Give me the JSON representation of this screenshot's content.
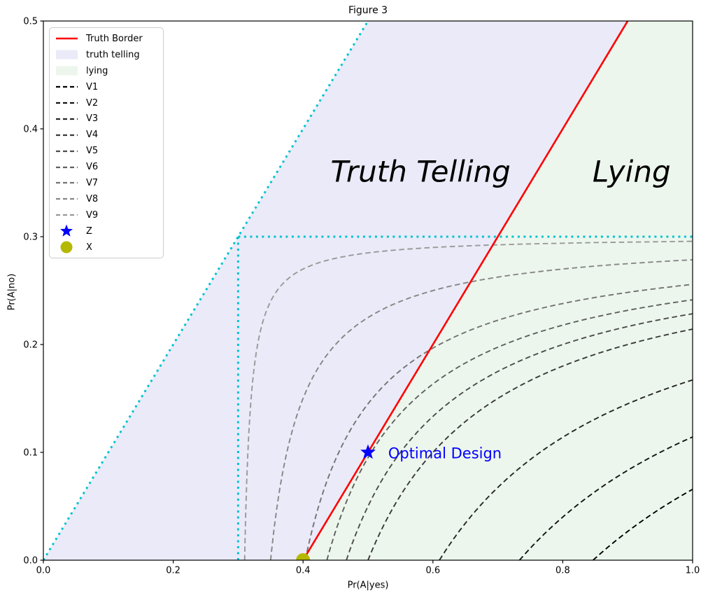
{
  "figure": {
    "title": "Figure 3"
  },
  "chart_data": {
    "type": "line",
    "title": "Figure 3",
    "xlabel": "Pr(A|yes)",
    "ylabel": "Pr(A|no)",
    "xlim": [
      0,
      1.0
    ],
    "ylim": [
      0,
      0.5
    ],
    "grid": false,
    "legend_position": "upper left",
    "xticks": {
      "values": [
        0,
        0.2,
        0.4,
        0.6,
        0.8,
        1.0
      ],
      "labels": [
        "0.0",
        "0.2",
        "0.4",
        "0.6",
        "0.8",
        "1.0"
      ]
    },
    "yticks": {
      "values": [
        0,
        0.1,
        0.2,
        0.3,
        0.4,
        0.5
      ],
      "labels": [
        "0.0",
        "0.1",
        "0.2",
        "0.3",
        "0.4",
        "0.5"
      ]
    },
    "regions": [
      {
        "name": "truth telling",
        "color": "#EAEAF8",
        "polygon": [
          [
            0,
            0
          ],
          [
            0.4,
            0
          ],
          [
            0.9,
            0.5
          ],
          [
            0.5,
            0.5
          ]
        ]
      },
      {
        "name": "lying",
        "color": "#EDF6ED",
        "polygon": [
          [
            0.4,
            0
          ],
          [
            1.0,
            0
          ],
          [
            1.0,
            0.5
          ],
          [
            0.9,
            0.5
          ]
        ]
      }
    ],
    "truth_border": {
      "label": "Truth Border",
      "color": "#FF0000",
      "from": [
        0.4,
        0
      ],
      "to": [
        0.9,
        0.5
      ]
    },
    "guide_lines": {
      "color": "#00C3CE",
      "style": "dotted",
      "segments": [
        {
          "name": "diagonal y=x",
          "from": [
            0,
            0
          ],
          "to": [
            0.5,
            0.5
          ]
        },
        {
          "name": "vertical x=0.3",
          "from": [
            0.3,
            0
          ],
          "to": [
            0.3,
            0.3
          ]
        },
        {
          "name": "horizontal y=0.3",
          "from": [
            0.3,
            0.3
          ],
          "to": [
            1.0,
            0.3
          ]
        }
      ]
    },
    "contours": {
      "equation": "(x - 0.3)(0.3 - y) = c",
      "style": "dashed",
      "series": [
        {
          "name": "V1",
          "c": 0.164,
          "color": "#000000",
          "x_at_y0": 0.847,
          "y_at_x1": 0.066
        },
        {
          "name": "V2",
          "c": 0.13,
          "color": "#131313",
          "x_at_y0": 0.733,
          "y_at_x1": 0.114
        },
        {
          "name": "V3",
          "c": 0.093,
          "color": "#262626",
          "x_at_y0": 0.61,
          "y_at_x1": 0.167
        },
        {
          "name": "V4",
          "c": 0.06,
          "color": "#393939",
          "x_at_y0": 0.5,
          "y_at_x1": 0.214
        },
        {
          "name": "V5",
          "c": 0.05,
          "color": "#4C4C4C",
          "x_at_y0": 0.467,
          "y_at_x1": 0.229
        },
        {
          "name": "V6",
          "c": 0.041,
          "color": "#606060",
          "x_at_y0": 0.437,
          "y_at_x1": 0.241
        },
        {
          "name": "V7",
          "c": 0.031,
          "color": "#737373",
          "x_at_y0": 0.403,
          "y_at_x1": 0.256
        },
        {
          "name": "V8",
          "c": 0.015,
          "color": "#868686",
          "x_at_y0": 0.35,
          "y_at_x1": 0.279
        },
        {
          "name": "V9",
          "c": 0.003,
          "color": "#999999",
          "x_at_y0": 0.31,
          "y_at_x1": 0.296
        }
      ]
    },
    "markers": [
      {
        "name": "Z",
        "shape": "star",
        "color": "#0000FF",
        "point": [
          0.5,
          0.1
        ]
      },
      {
        "name": "X",
        "shape": "circle",
        "color": "#B5B800",
        "point": [
          0.4,
          0.0
        ]
      }
    ],
    "annotations": [
      {
        "text": "Truth Telling",
        "at": [
          0.581,
          0.359
        ],
        "color": "#000000",
        "align": "center"
      },
      {
        "text": "Lying",
        "at": [
          0.906,
          0.359
        ],
        "color": "#000000",
        "align": "center"
      },
      {
        "text": "Optimal Design",
        "at": [
          0.516,
          0.099
        ],
        "color": "#0000FF",
        "align": "left"
      }
    ]
  },
  "legend": {
    "items": [
      {
        "label": "Truth Border",
        "swatch": "line",
        "color": "#FF0000"
      },
      {
        "label": "truth telling",
        "swatch": "patch",
        "color": "#EAEAF8"
      },
      {
        "label": "lying",
        "swatch": "patch",
        "color": "#EDF6ED"
      },
      {
        "label": "V1",
        "swatch": "dashed",
        "color": "#000000"
      },
      {
        "label": "V2",
        "swatch": "dashed",
        "color": "#131313"
      },
      {
        "label": "V3",
        "swatch": "dashed",
        "color": "#262626"
      },
      {
        "label": "V4",
        "swatch": "dashed",
        "color": "#393939"
      },
      {
        "label": "V5",
        "swatch": "dashed",
        "color": "#4C4C4C"
      },
      {
        "label": "V6",
        "swatch": "dashed",
        "color": "#606060"
      },
      {
        "label": "V7",
        "swatch": "dashed",
        "color": "#737373"
      },
      {
        "label": "V8",
        "swatch": "dashed",
        "color": "#868686"
      },
      {
        "label": "V9",
        "swatch": "dashed",
        "color": "#999999"
      },
      {
        "label": "Z",
        "swatch": "star",
        "color": "#0000FF"
      },
      {
        "label": "X",
        "swatch": "dot",
        "color": "#B5B800"
      }
    ]
  }
}
